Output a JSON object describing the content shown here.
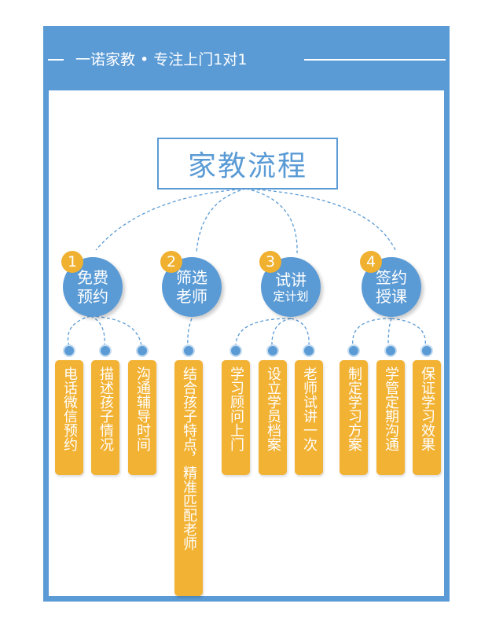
{
  "header": {
    "title": "一诺家教 • 专注上门1对1"
  },
  "main_title": "家教流程",
  "colors": {
    "primary": "#5b9bd5",
    "accent": "#f2b234",
    "frame": "#5b9bd5"
  },
  "steps": [
    {
      "number": "1",
      "title_line1": "免费",
      "title_line2": "预约",
      "items": [
        "电话微信预约",
        "描述孩子情况",
        "沟通辅导时间"
      ]
    },
    {
      "number": "2",
      "title_line1": "筛选",
      "title_line2": "老师",
      "items": [
        "结合孩子特点，精准匹配老师"
      ]
    },
    {
      "number": "3",
      "title_line1": "试讲",
      "title_line2": "定计划",
      "items": [
        "学习顾问上门",
        "设立学员档案",
        "老师试讲一次"
      ]
    },
    {
      "number": "4",
      "title_line1": "签约",
      "title_line2": "授课",
      "items": [
        "制定学习方案",
        "学管定期沟通",
        "保证学习效果"
      ]
    }
  ]
}
